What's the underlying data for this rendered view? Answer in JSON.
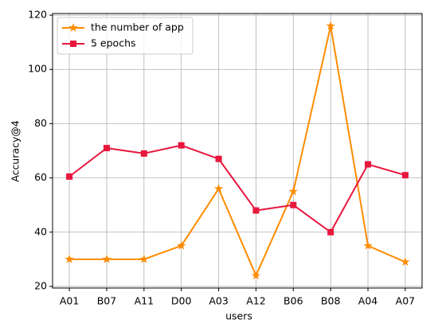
{
  "chart_data": {
    "type": "line",
    "xlabel": "users",
    "ylabel": "Accuracy@4",
    "categories": [
      "A01",
      "B07",
      "A11",
      "D00",
      "A03",
      "A12",
      "B06",
      "B08",
      "A04",
      "A07"
    ],
    "series": [
      {
        "name": "the number of app",
        "color": "#ff8c00",
        "marker": "star",
        "values": [
          30,
          30,
          30,
          35,
          56,
          24,
          55,
          116,
          35,
          29
        ]
      },
      {
        "name": "5 epochs",
        "color": "#e8173d",
        "marker": "square",
        "values": [
          60.5,
          71,
          69,
          72,
          67,
          48,
          50,
          40,
          65,
          61
        ]
      }
    ],
    "ylim": [
      19.4,
      120.6
    ],
    "yticks": [
      20,
      40,
      60,
      80,
      100,
      120
    ],
    "grid": true,
    "legend": "upper-left"
  }
}
